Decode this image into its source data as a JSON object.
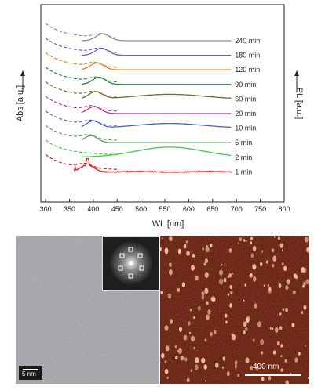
{
  "chart_data": {
    "type": "line",
    "xlabel": "WL [nm]",
    "ylabel_left": "Abs [a.u.]",
    "ylabel_right": "PL [a.u.]",
    "xlim": [
      290,
      800
    ],
    "xticks": [
      "300",
      "350",
      "400",
      "450",
      "500",
      "550",
      "600",
      "650",
      "700",
      "750",
      "800"
    ],
    "line_styles": {
      "absorption": "dashed",
      "photoluminescence": "solid"
    },
    "series": [
      {
        "name": "240 min",
        "color": "#8f8f8f",
        "pl_peak_nm": 420,
        "pl_tail_nm": 690,
        "abs_start_nm": 300
      },
      {
        "name": "180 min",
        "color": "#6b5fc8",
        "pl_peak_nm": 418,
        "pl_tail_nm": 690,
        "abs_start_nm": 300
      },
      {
        "name": "120 min",
        "color": "#f07d1a",
        "pl_peak_nm": 408,
        "pl_tail_nm": 690,
        "abs_start_nm": 300
      },
      {
        "name": "90 min",
        "color": "#1e8a3c",
        "pl_peak_nm": 412,
        "pl_tail_nm": 690,
        "abs_start_nm": 300
      },
      {
        "name": "60 min",
        "color": "#7a6a2a",
        "pl_peak_nm": 405,
        "pl_tail_nm": 690,
        "abs_start_nm": 300,
        "pl_second_peak_nm": 560
      },
      {
        "name": "20 min",
        "color": "#c2309a",
        "pl_peak_nm": 402,
        "pl_tail_nm": 690,
        "abs_start_nm": 300
      },
      {
        "name": "10 min",
        "color": "#4a62c4",
        "pl_peak_nm": 400,
        "pl_tail_nm": 690,
        "abs_start_nm": 300,
        "pl_second_peak_nm": 560
      },
      {
        "name": "5 min",
        "color": "#5ea05e",
        "pl_peak_nm": 395,
        "pl_tail_nm": 690,
        "abs_start_nm": 300
      },
      {
        "name": "2 min",
        "color": "#3ecf3e",
        "pl_peak_nm": 560,
        "pl_tail_nm": 690,
        "abs_start_nm": 300
      },
      {
        "name": "1 min",
        "color": "#e02020",
        "pl_peak_nm": 388,
        "pl_tail_nm": 690,
        "abs_start_nm": 300
      }
    ]
  },
  "images": {
    "tem": {
      "scale_label": "5 nm",
      "background": "#a8abb0"
    },
    "afm": {
      "scale_label": "400 nm",
      "background": "#5e1a10",
      "dot_color": "#f2c9a0"
    }
  }
}
